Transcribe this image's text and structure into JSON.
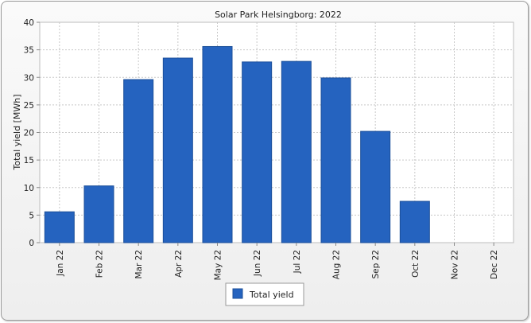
{
  "chart_data": {
    "type": "bar",
    "title": "Solar Park Helsingborg: 2022",
    "xlabel": "",
    "ylabel": "Total yield [MWh]",
    "ylim": [
      0,
      40
    ],
    "yticks": [
      0,
      5,
      10,
      15,
      20,
      25,
      30,
      35,
      40
    ],
    "categories": [
      "Jan 22",
      "Feb 22",
      "Mar 22",
      "Apr 22",
      "May 22",
      "Jun 22",
      "Jul 22",
      "Aug 22",
      "Sep 22",
      "Oct 22",
      "Nov 22",
      "Dec 22"
    ],
    "series": [
      {
        "name": "Total yield",
        "color": "#2563bf",
        "values": [
          5.6,
          10.3,
          29.6,
          33.5,
          35.6,
          32.8,
          32.9,
          29.9,
          20.2,
          7.5,
          0,
          0
        ]
      }
    ],
    "grid": true,
    "legend": "bottom-center"
  }
}
